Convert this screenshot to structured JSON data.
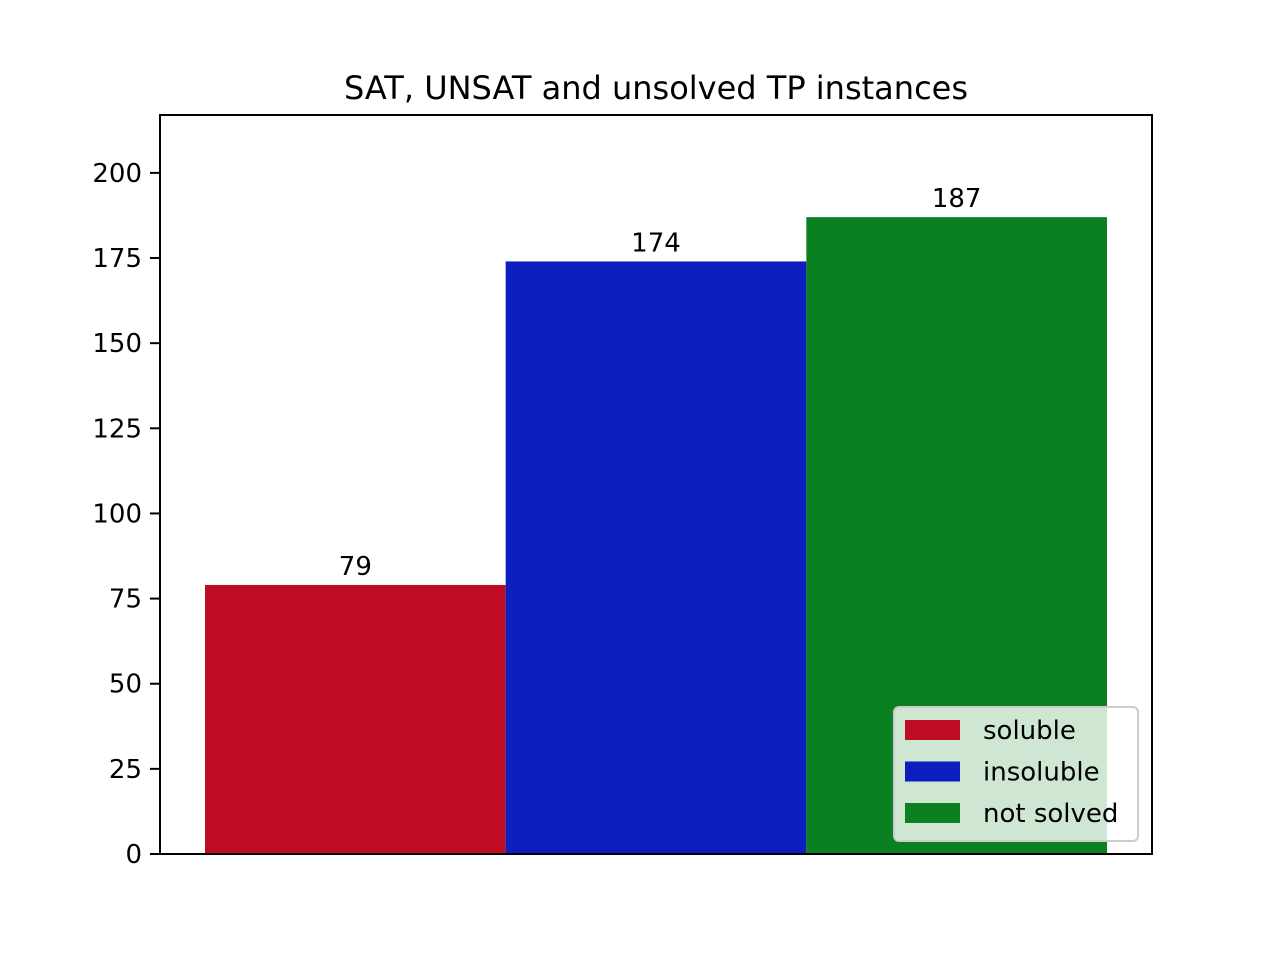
{
  "chart_data": {
    "type": "bar",
    "title": "SAT, UNSAT and unsolved TP instances",
    "xlabel": "",
    "ylabel": "",
    "ylim": [
      0,
      217
    ],
    "yticks": [
      0,
      25,
      50,
      75,
      100,
      125,
      150,
      175,
      200
    ],
    "grid": false,
    "legend_position": "lower right",
    "series": [
      {
        "name": "soluble",
        "value": 79,
        "color": "#bd0c24"
      },
      {
        "name": "insoluble",
        "value": 174,
        "color": "#0c1ebd"
      },
      {
        "name": "not solved",
        "value": 187,
        "color": "#0a8021"
      }
    ]
  }
}
